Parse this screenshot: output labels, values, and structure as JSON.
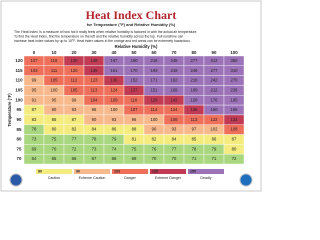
{
  "header": {
    "title": "Heat Index Chart",
    "subtitle": "for Temperature (°F) and Relative Humidity (%)",
    "description": [
      "The 'Heat Index' is a measure of how hot it really feels when relative humidity is factored in with the actual air temperature.",
      "To find the Heat Index, find the temperature on the left and the relative humidity across the top. Full sunshine can",
      "increase heat index values by up to 15°F. Heat index values in the orange and red areas can be extremely hazardous."
    ]
  },
  "table": {
    "column_label": "Relative Humidity (%)",
    "row_label": "Temperature (°F)",
    "columns": [
      0,
      10,
      20,
      30,
      40,
      50,
      60,
      70,
      80,
      90,
      100
    ],
    "rows": [
      120,
      115,
      110,
      105,
      100,
      95,
      90,
      85,
      80,
      75,
      70
    ],
    "values": [
      [
        107,
        116,
        130,
        148,
        167,
        190,
        216,
        245,
        277,
        312,
        350
      ],
      [
        103,
        111,
        120,
        135,
        151,
        170,
        193,
        218,
        246,
        277,
        310
      ],
      [
        99,
        105,
        112,
        123,
        136,
        152,
        171,
        192,
        216,
        242,
        270
      ],
      [
        95,
        100,
        105,
        113,
        124,
        137,
        151,
        169,
        189,
        212,
        236
      ],
      [
        91,
        95,
        99,
        104,
        109,
        118,
        129,
        142,
        158,
        176,
        195
      ],
      [
        87,
        90,
        93,
        96,
        100,
        107,
        114,
        124,
        136,
        150,
        165
      ],
      [
        83,
        85,
        87,
        90,
        93,
        96,
        100,
        106,
        113,
        122,
        132
      ],
      [
        78,
        80,
        82,
        84,
        86,
        88,
        90,
        93,
        97,
        102,
        108
      ],
      [
        73,
        75,
        77,
        78,
        79,
        81,
        82,
        84,
        85,
        86,
        87
      ],
      [
        69,
        70,
        72,
        73,
        74,
        75,
        76,
        77,
        78,
        79,
        80
      ],
      [
        64,
        65,
        66,
        67,
        68,
        69,
        70,
        70,
        71,
        71,
        72
      ]
    ],
    "base_color": "#a9d77f",
    "bands": [
      {
        "label": "Caution",
        "min": 80,
        "color": "#f4ec7e"
      },
      {
        "label": "Extreme Caution",
        "min": 90,
        "color": "#f8b98c"
      },
      {
        "label": "Danger",
        "min": 103,
        "color": "#ee6f5a"
      },
      {
        "label": "Extreme Danger",
        "min": 125,
        "color": "#c23b55"
      },
      {
        "label": "Deadly",
        "min": 150,
        "color": "#9c72b8"
      }
    ]
  }
}
